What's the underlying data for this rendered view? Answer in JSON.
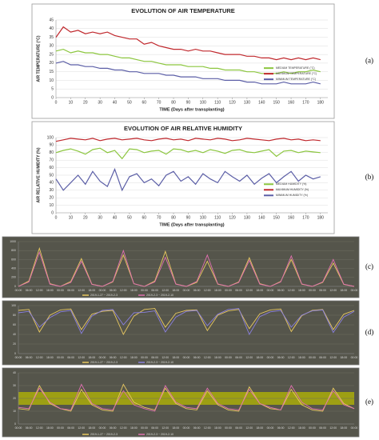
{
  "chart_data": [
    {
      "type": "line",
      "style": "light",
      "panel_label": "(a)",
      "title": "EVOLUTION OF AIR TEMPERATURE",
      "x_label": "TIME (Days after transplanting)",
      "y_label": "AIR TEMPERATURE (°C)",
      "x": [
        0,
        5,
        10,
        15,
        20,
        25,
        30,
        35,
        40,
        45,
        50,
        55,
        60,
        65,
        70,
        75,
        80,
        85,
        90,
        95,
        100,
        105,
        110,
        115,
        120,
        125,
        130,
        135,
        140,
        145,
        150,
        155,
        160,
        165,
        170,
        175,
        180
      ],
      "xlim": [
        0,
        185
      ],
      "xticks": [
        0,
        10,
        20,
        30,
        40,
        50,
        60,
        70,
        80,
        90,
        100,
        110,
        120,
        130,
        140,
        150,
        160,
        170,
        180
      ],
      "ylim": [
        0,
        45
      ],
      "yticks": [
        0,
        5,
        10,
        15,
        20,
        25,
        30,
        35,
        40,
        45
      ],
      "grid": true,
      "series": [
        {
          "name": "MEDIUM TEMPERATURE (°C)",
          "color": "#8cc63f",
          "values": [
            27,
            28,
            26,
            27,
            26,
            26,
            25,
            25,
            24,
            23,
            23,
            22,
            21,
            21,
            20,
            19,
            19,
            19,
            18,
            18,
            18,
            17,
            17,
            16,
            16,
            16,
            15,
            15,
            14,
            14,
            14,
            15,
            14,
            15,
            15,
            16,
            15
          ]
        },
        {
          "name": "MAXIMUM TEMPERATURE (°C)",
          "color": "#c0282d",
          "values": [
            35,
            41,
            38,
            39,
            37,
            38,
            37,
            38,
            36,
            35,
            34,
            34,
            31,
            32,
            30,
            29,
            28,
            28,
            27,
            28,
            27,
            27,
            26,
            25,
            25,
            25,
            24,
            24,
            23,
            23,
            22,
            23,
            22,
            23,
            22,
            23,
            22
          ]
        },
        {
          "name": "MINIMUM TEMPERATURE (°C)",
          "color": "#5b5ea6",
          "values": [
            20,
            21,
            19,
            19,
            18,
            18,
            17,
            17,
            16,
            16,
            15,
            15,
            14,
            14,
            14,
            13,
            13,
            12,
            12,
            12,
            11,
            11,
            11,
            10,
            10,
            10,
            9,
            9,
            8,
            8,
            8,
            9,
            8,
            8,
            8,
            9,
            8
          ]
        }
      ]
    },
    {
      "type": "line",
      "style": "light",
      "panel_label": "(b)",
      "title": "EVOLUTION OF AIR RELATIVE HUMIDITY",
      "x_label": "TIME (Days after transplanting)",
      "y_label": "AIR RELATIVE HUMIDITY (%)",
      "x": [
        0,
        5,
        10,
        15,
        20,
        25,
        30,
        35,
        40,
        45,
        50,
        55,
        60,
        65,
        70,
        75,
        80,
        85,
        90,
        95,
        100,
        105,
        110,
        115,
        120,
        125,
        130,
        135,
        140,
        145,
        150,
        155,
        160,
        165,
        170,
        175,
        180
      ],
      "xlim": [
        0,
        185
      ],
      "xticks": [
        0,
        10,
        20,
        30,
        40,
        50,
        60,
        70,
        80,
        90,
        100,
        110,
        120,
        130,
        140,
        150,
        160,
        170,
        180
      ],
      "ylim": [
        0,
        100
      ],
      "yticks": [
        0,
        10,
        20,
        30,
        40,
        50,
        60,
        70,
        80,
        90,
        100
      ],
      "grid": true,
      "series": [
        {
          "name": "MEDIUM HUMIDITY (%)",
          "color": "#8cc63f",
          "values": [
            80,
            83,
            85,
            82,
            78,
            84,
            86,
            80,
            83,
            72,
            85,
            84,
            80,
            82,
            83,
            78,
            85,
            84,
            81,
            83,
            80,
            84,
            82,
            79,
            83,
            84,
            81,
            80,
            82,
            84,
            75,
            82,
            83,
            80,
            82,
            81,
            80
          ]
        },
        {
          "name": "MAXIMUM HUMIDITY (%)",
          "color": "#c0282d",
          "values": [
            95,
            97,
            99,
            98,
            97,
            99,
            96,
            98,
            99,
            97,
            98,
            99,
            97,
            96,
            98,
            99,
            97,
            98,
            96,
            99,
            98,
            97,
            99,
            98,
            96,
            97,
            99,
            98,
            97,
            96,
            98,
            99,
            97,
            98,
            96,
            97,
            96
          ]
        },
        {
          "name": "MINIMUM HUMIDITY (%)",
          "color": "#5b5ea6",
          "values": [
            45,
            30,
            40,
            50,
            38,
            55,
            42,
            35,
            58,
            30,
            48,
            52,
            40,
            45,
            36,
            50,
            55,
            42,
            48,
            38,
            52,
            45,
            40,
            55,
            48,
            42,
            50,
            38,
            46,
            52,
            40,
            48,
            55,
            42,
            50,
            45,
            48
          ]
        }
      ]
    },
    {
      "type": "line",
      "style": "dark",
      "panel_label": "(c)",
      "categories": [
        "00:00",
        "06:00",
        "12:00",
        "18:00",
        "00:00",
        "06:00",
        "12:00",
        "18:00",
        "00:00",
        "06:00",
        "12:00",
        "18:00",
        "00:00",
        "06:00",
        "12:00",
        "18:00",
        "00:00",
        "06:00",
        "12:00",
        "18:00",
        "00:00",
        "06:00",
        "12:00",
        "18:00",
        "00:00",
        "06:00",
        "12:00",
        "18:00",
        "00:00",
        "06:00",
        "12:00",
        "18:00",
        "00:00"
      ],
      "ylim": [
        0,
        1000
      ],
      "yticks": [
        0,
        200,
        400,
        600,
        800,
        1000
      ],
      "grid": true,
      "series": [
        {
          "name": "2019-1-27 ~ 2019-2-3",
          "color": "#e8c860",
          "values": [
            0,
            120,
            850,
            60,
            0,
            110,
            620,
            50,
            0,
            100,
            700,
            60,
            0,
            120,
            780,
            55,
            0,
            90,
            560,
            50,
            0,
            100,
            640,
            60,
            0,
            110,
            600,
            50,
            0,
            90,
            520,
            45,
            0
          ]
        },
        {
          "name": "2019-2-3 ~ 2019-2-10",
          "color": "#e070b0",
          "values": [
            0,
            100,
            760,
            50,
            0,
            90,
            560,
            45,
            0,
            110,
            800,
            60,
            0,
            100,
            650,
            50,
            0,
            110,
            700,
            55,
            0,
            90,
            580,
            50,
            0,
            100,
            680,
            55,
            0,
            100,
            600,
            50,
            0
          ]
        }
      ]
    },
    {
      "type": "line",
      "style": "dark",
      "panel_label": "(d)",
      "categories": [
        "00:00",
        "06:00",
        "12:00",
        "18:00",
        "00:00",
        "06:00",
        "12:00",
        "18:00",
        "00:00",
        "06:00",
        "12:00",
        "18:00",
        "00:00",
        "06:00",
        "12:00",
        "18:00",
        "00:00",
        "06:00",
        "12:00",
        "18:00",
        "00:00",
        "06:00",
        "12:00",
        "18:00",
        "00:00",
        "06:00",
        "12:00",
        "18:00",
        "00:00",
        "06:00",
        "12:00",
        "18:00",
        "00:00"
      ],
      "ylim": [
        0,
        100
      ],
      "yticks": [
        0,
        20,
        40,
        60,
        80,
        100
      ],
      "grid": true,
      "series": [
        {
          "name": "2019-1-27 ~ 2019-2-3",
          "color": "#e8c860",
          "values": [
            90,
            92,
            45,
            80,
            91,
            93,
            50,
            82,
            88,
            90,
            40,
            78,
            92,
            94,
            55,
            84,
            90,
            91,
            48,
            80,
            89,
            92,
            52,
            83,
            91,
            93,
            46,
            79,
            90,
            92,
            50,
            82,
            90
          ]
        },
        {
          "name": "2019-2-3 ~ 2019-2-10",
          "color": "#8a80e0",
          "values": [
            85,
            88,
            55,
            75,
            87,
            90,
            42,
            78,
            90,
            92,
            60,
            85,
            86,
            89,
            45,
            76,
            88,
            90,
            58,
            82,
            92,
            94,
            40,
            77,
            87,
            90,
            55,
            80,
            89,
            91,
            44,
            76,
            88
          ]
        }
      ]
    },
    {
      "type": "line",
      "style": "dark",
      "panel_label": "(e)",
      "categories": [
        "00:00",
        "06:00",
        "12:00",
        "18:00",
        "00:00",
        "06:00",
        "12:00",
        "18:00",
        "00:00",
        "06:00",
        "12:00",
        "18:00",
        "00:00",
        "06:00",
        "12:00",
        "18:00",
        "00:00",
        "06:00",
        "12:00",
        "18:00",
        "00:00",
        "06:00",
        "12:00",
        "18:00",
        "00:00",
        "06:00",
        "12:00",
        "18:00",
        "00:00",
        "06:00",
        "12:00",
        "18:00",
        "00:00"
      ],
      "ylim": [
        0,
        40
      ],
      "yticks": [
        0,
        10,
        20,
        30,
        40
      ],
      "grid": true,
      "band": {
        "range": [
          15,
          25
        ],
        "color": "#b5b800"
      },
      "series": [
        {
          "name": "2019-1-27 ~ 2019-2-3",
          "color": "#e8c860",
          "values": [
            12,
            11,
            30,
            16,
            12,
            10,
            27,
            15,
            11,
            10,
            31,
            17,
            13,
            11,
            28,
            16,
            12,
            11,
            26,
            15,
            11,
            10,
            29,
            16,
            12,
            11,
            27,
            15,
            11,
            10,
            28,
            16,
            12
          ]
        },
        {
          "name": "2019-2-3 ~ 2019-2-10",
          "color": "#e070b0",
          "values": [
            13,
            12,
            28,
            17,
            12,
            11,
            31,
            16,
            12,
            11,
            26,
            15,
            12,
            10,
            30,
            17,
            13,
            12,
            28,
            16,
            12,
            11,
            27,
            16,
            13,
            11,
            30,
            17,
            12,
            11,
            26,
            15,
            12
          ]
        }
      ]
    }
  ]
}
